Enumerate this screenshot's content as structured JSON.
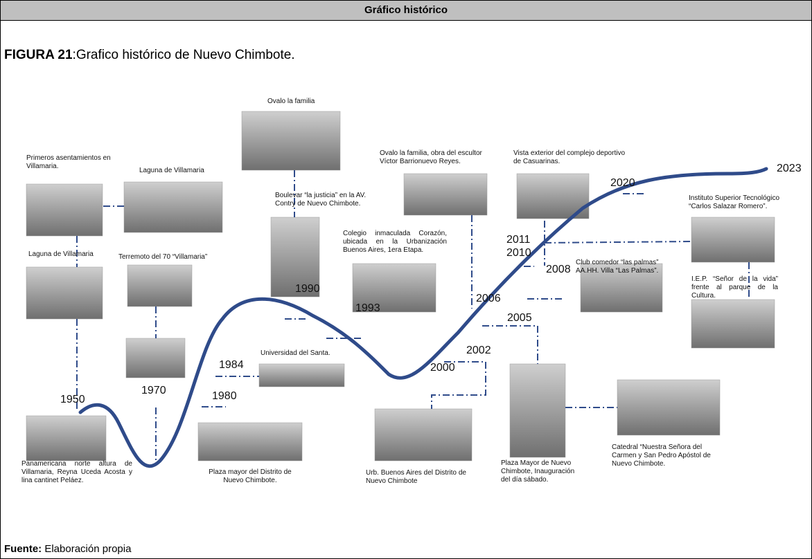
{
  "header": {
    "title": "Gráfico histórico"
  },
  "figure": {
    "label": "FIGURA 21",
    "caption": ":Grafico histórico de Nuevo Chimbote."
  },
  "years": [
    "1950",
    "1970",
    "1980",
    "1984",
    "1990",
    "1993",
    "2000",
    "2002",
    "2005",
    "2006",
    "2008",
    "2010",
    "2011",
    "2020",
    "2023"
  ],
  "captions": [
    "Primeros asentamientos en Villamaria.",
    "Laguna de Villamaria",
    "Laguna de Villamaria",
    "Terremoto del 70 “Villamaria”",
    "Panamericana norte altura de Villamaria, Reyna Uceda Acosta y lina cantinet Peláez.",
    "Ovalo la familia",
    "Boulevar “la justicia” en la AV. Contry de Nuevo Chimbote.",
    "Universidad del Santa.",
    "Plaza mayor del Distrito de Nuevo Chimbote.",
    "Ovalo la familia, obra del escultor Víctor Barrionuevo Reyes.",
    "Colegio inmaculada Corazón, ubicada en la Urbanización Buenos Aires, 1era Etapa.",
    "Vista exterior del complejo deportivo de Casuarinas.",
    "Urb. Buenos Aires del Distrito de Nuevo Chimbote",
    "Plaza Mayor de Nuevo Chimbote, Inauguración del día sábado.",
    "Club comedor “las palmas” AA.HH. Villa “Las Palmas”.",
    "Catedral “Nuestra Señora del Carmen y San Pedro Apóstol de Nuevo Chimbote.",
    "Instituto Superior Tecnológico “Carlos Salazar Romero”.",
    "I.E.P. “Señor de la vida” frente al parque de la Cultura."
  ],
  "source": {
    "label": "Fuente:",
    "text": "Elaboración propia"
  }
}
